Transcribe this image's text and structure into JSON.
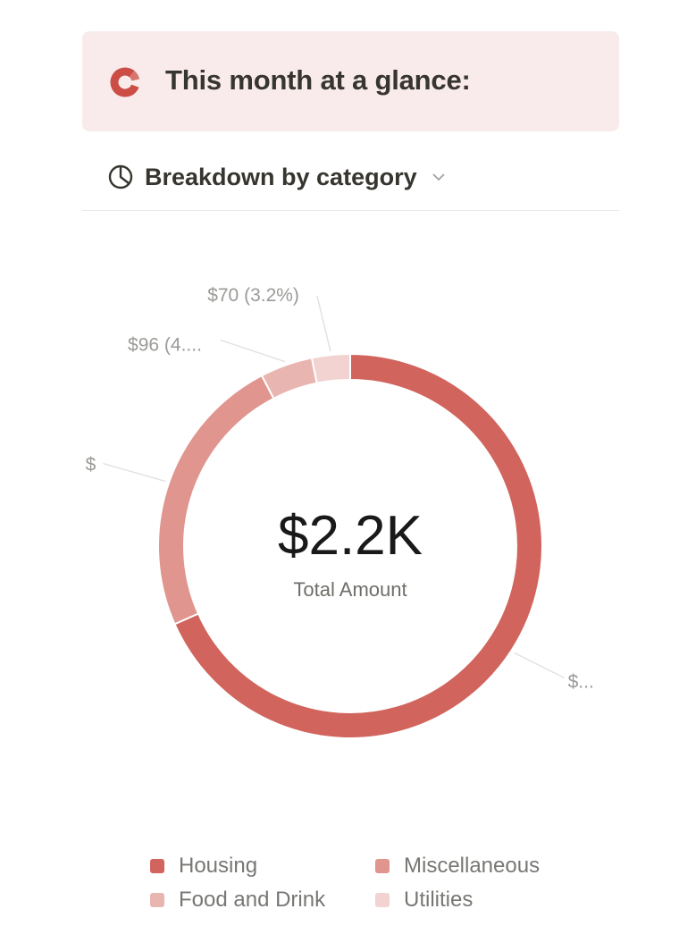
{
  "callout": {
    "title": "This month at a glance:",
    "icon": "donut-chart-icon",
    "icon_color": "#cb4d45"
  },
  "view": {
    "label": "Breakdown by category",
    "icon": "pie-chart-icon",
    "chevron": "chevron-down-icon"
  },
  "chart_data": {
    "type": "pie",
    "variant": "donut",
    "center_value": "$2.2K",
    "center_label": "Total Amount",
    "categories": [
      "Housing",
      "Miscellaneous",
      "Food and Drink",
      "Utilities"
    ],
    "values": [
      1490,
      524,
      96,
      70
    ],
    "percents": [
      68.3,
      24.1,
      4.4,
      3.2
    ],
    "colors": [
      "#d1645d",
      "#e0958f",
      "#e9b5b1",
      "#f2d3d1"
    ],
    "data_labels": [
      "$...",
      "$",
      "$96 (4....",
      "$70 (3.2%)"
    ],
    "legend_position": "bottom"
  }
}
